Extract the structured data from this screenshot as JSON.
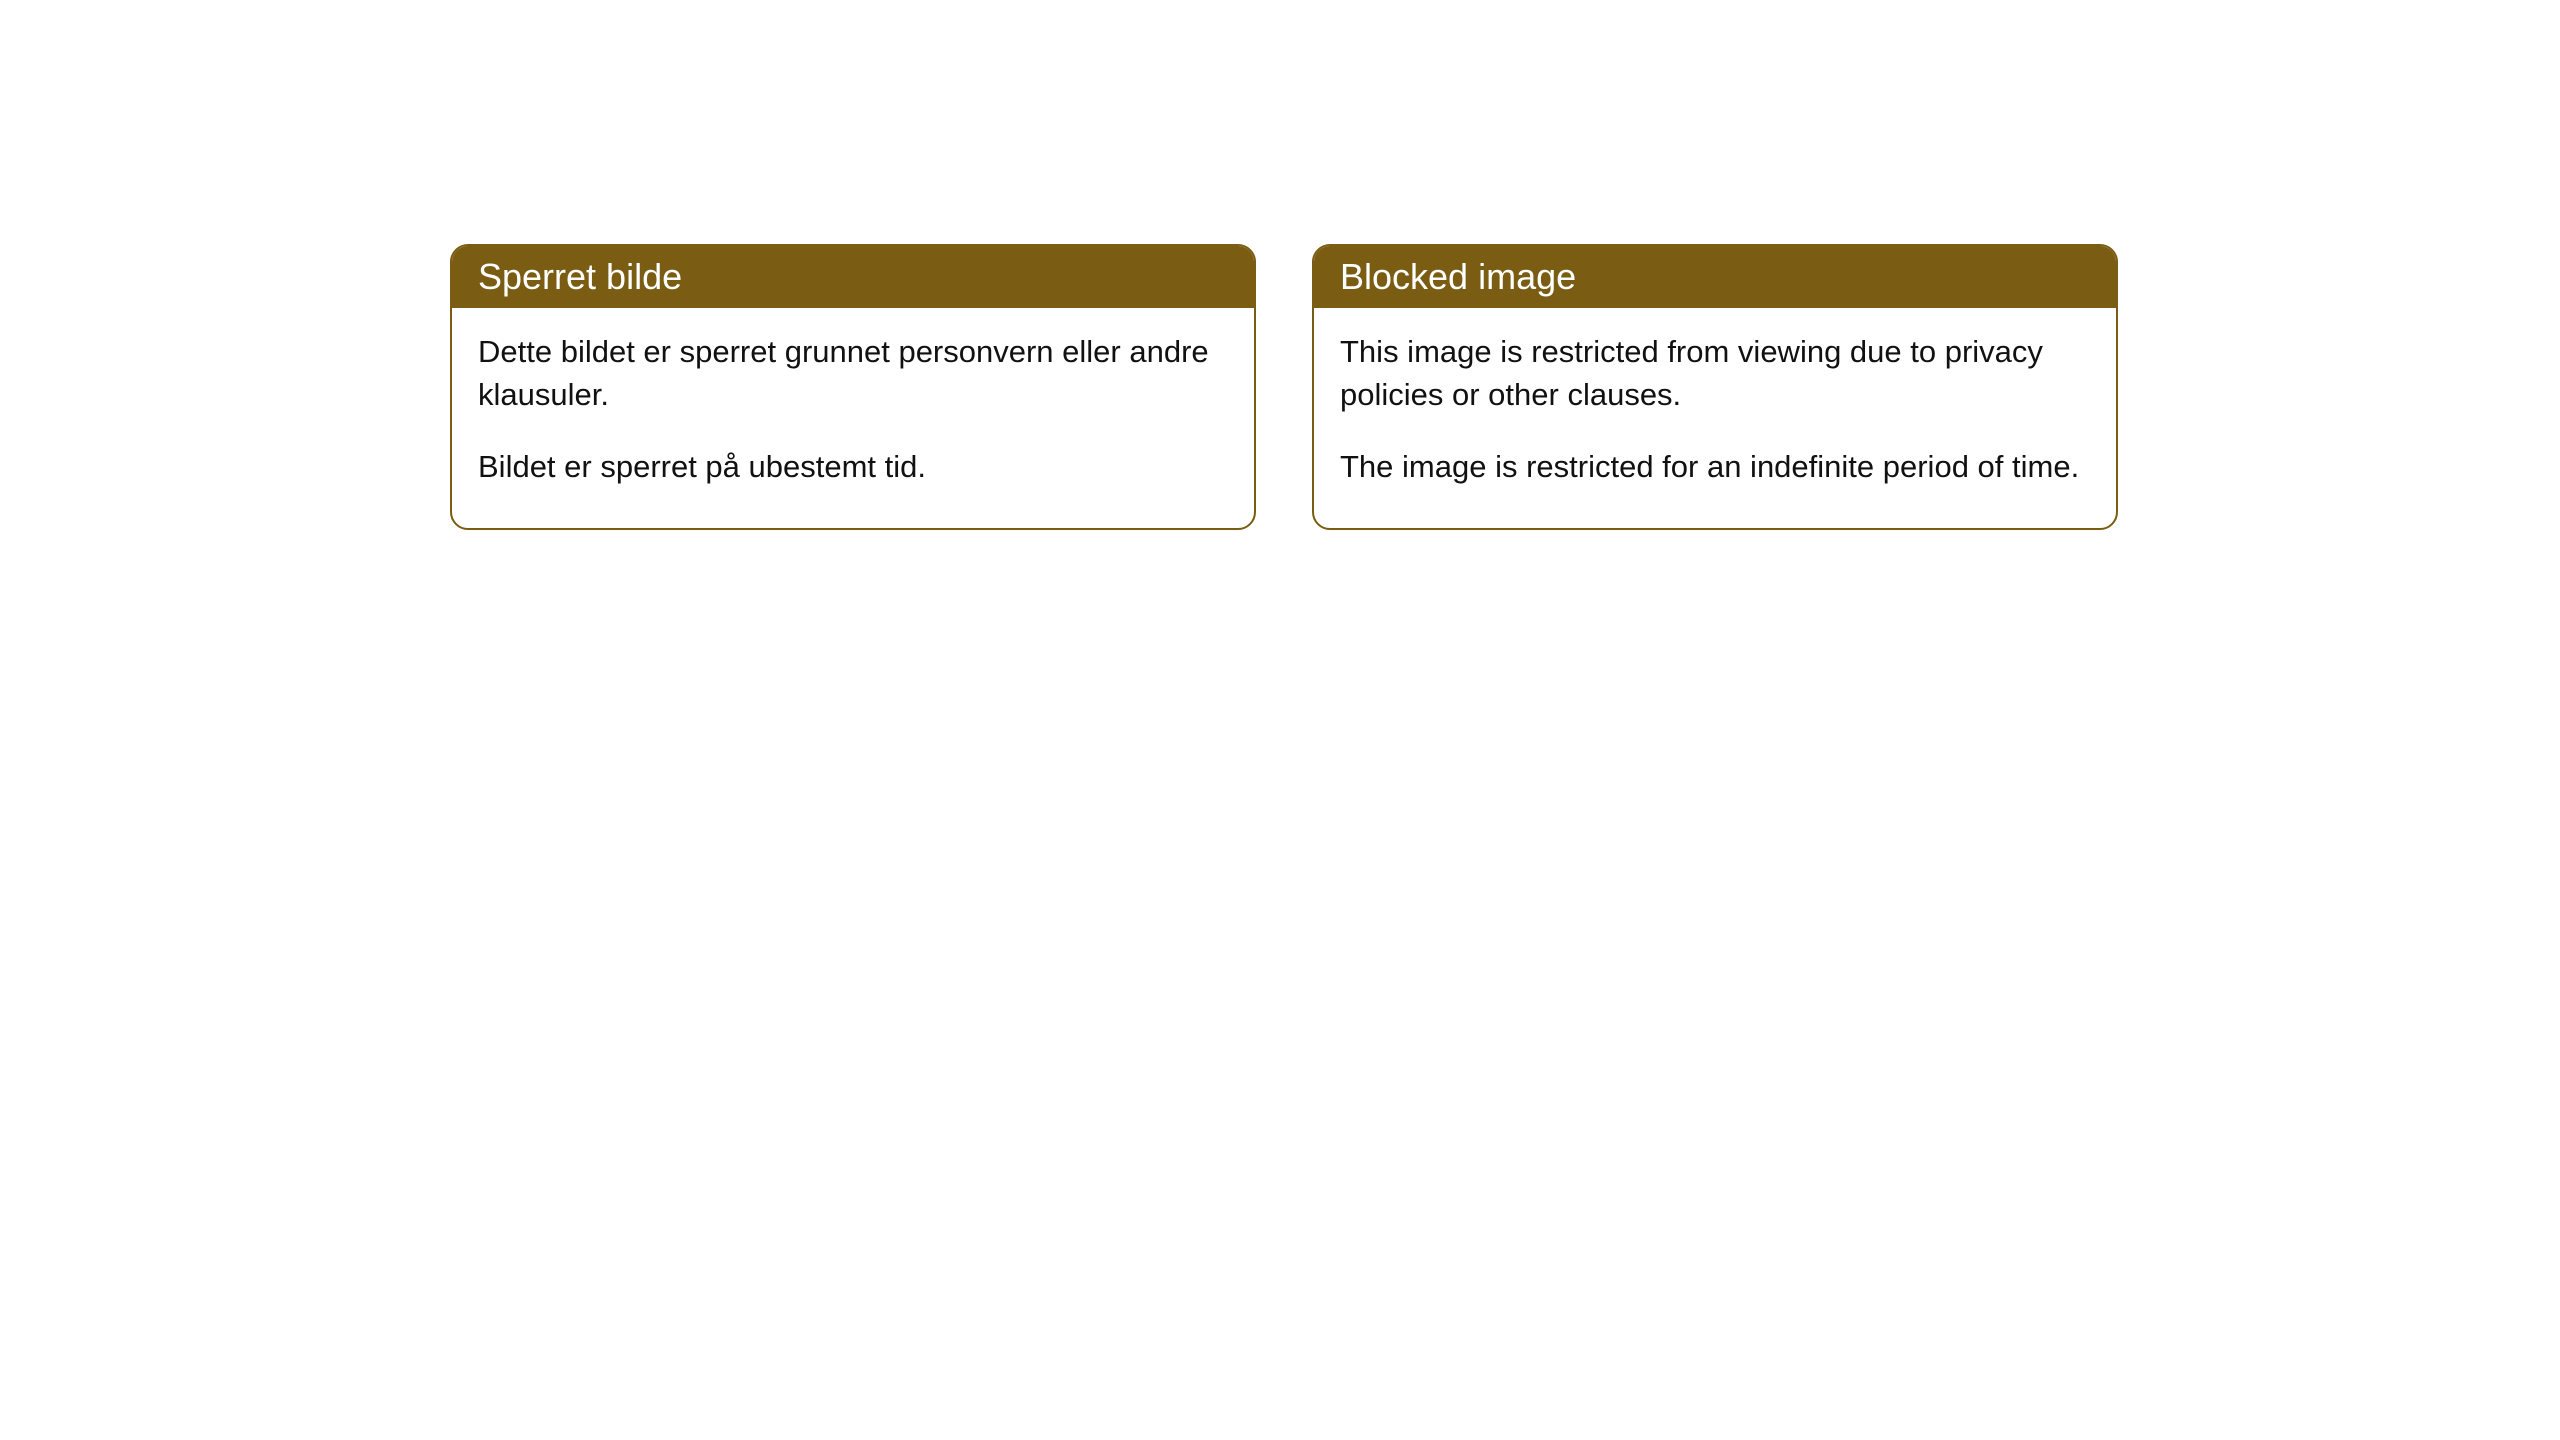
{
  "cards": [
    {
      "header": "Sperret bilde",
      "paragraph1": "Dette bildet er sperret grunnet personvern eller andre klausuler.",
      "paragraph2": "Bildet er sperret på ubestemt tid."
    },
    {
      "header": "Blocked image",
      "paragraph1": "This image is restricted from viewing due to privacy policies or other clauses.",
      "paragraph2": "The image is restricted for an indefinite period of time."
    }
  ],
  "style": {
    "header_bg_color": "#7a5d13",
    "header_text_color": "#ffffff",
    "border_color": "#7a5d13",
    "body_text_color": "#111111",
    "card_bg_color": "#ffffff",
    "border_radius": 18,
    "header_fontsize": 36,
    "body_fontsize": 31
  }
}
